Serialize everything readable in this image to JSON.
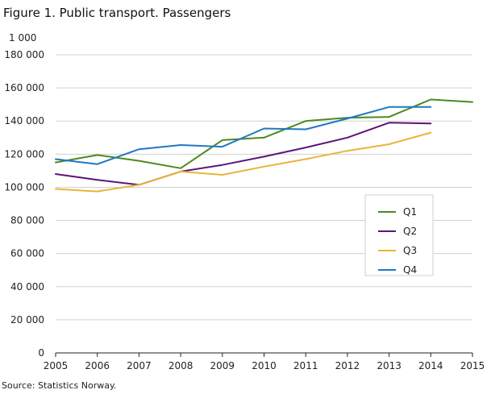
{
  "figure": {
    "title": "Figure 1. Public transport. Passengers",
    "unit_label": "1 000",
    "source": "Source: Statistics Norway."
  },
  "chart_data": {
    "type": "line",
    "title": "Figure 1. Public transport. Passengers",
    "xlabel": "",
    "ylabel": "1 000",
    "x": [
      2005,
      2006,
      2007,
      2008,
      2009,
      2010,
      2011,
      2012,
      2013,
      2014,
      2015
    ],
    "xlim": [
      2005,
      2015
    ],
    "ylim": [
      0,
      180000
    ],
    "yticks": [
      0,
      20000,
      40000,
      60000,
      80000,
      100000,
      120000,
      140000,
      160000,
      180000
    ],
    "ytick_labels": [
      "0",
      "20 000",
      "40 000",
      "60 000",
      "80 000",
      "100 000",
      "120 000",
      "140 000",
      "160 000",
      "180 000"
    ],
    "xtick_labels": [
      "2005",
      "2006",
      "2007",
      "2008",
      "2009",
      "2010",
      "2011",
      "2012",
      "2013",
      "2014",
      "2015"
    ],
    "grid": "horizontal",
    "legend_position": "right",
    "series": [
      {
        "name": "Q1",
        "color": "#4c8a1e",
        "points": [
          [
            2005,
            115000
          ],
          [
            2006,
            119500
          ],
          [
            2007,
            116000
          ],
          [
            2008,
            111500
          ],
          [
            2009,
            128500
          ],
          [
            2010,
            130000
          ],
          [
            2011,
            140000
          ],
          [
            2012,
            142000
          ],
          [
            2013,
            142500
          ],
          [
            2014,
            153000
          ],
          [
            2015,
            151500
          ]
        ]
      },
      {
        "name": "Q2",
        "color": "#5b1675",
        "points": [
          [
            2005,
            108000
          ],
          [
            2006,
            104500
          ],
          [
            2007,
            101500
          ],
          [
            2008,
            109500
          ],
          [
            2009,
            113500
          ],
          [
            2010,
            118500
          ],
          [
            2011,
            124000
          ],
          [
            2012,
            130000
          ],
          [
            2013,
            139000
          ],
          [
            2014,
            138500
          ]
        ]
      },
      {
        "name": "Q3",
        "color": "#e8b43a",
        "points": [
          [
            2005,
            99000
          ],
          [
            2006,
            97500
          ],
          [
            2007,
            101500
          ],
          [
            2008,
            109500
          ],
          [
            2009,
            107500
          ],
          [
            2010,
            112500
          ],
          [
            2011,
            117000
          ],
          [
            2012,
            122000
          ],
          [
            2013,
            126000
          ],
          [
            2014,
            133000
          ]
        ]
      },
      {
        "name": "Q4",
        "color": "#1f78c1",
        "points": [
          [
            2005,
            117000
          ],
          [
            2006,
            114000
          ],
          [
            2007,
            123000
          ],
          [
            2008,
            125500
          ],
          [
            2009,
            124500
          ],
          [
            2010,
            135500
          ],
          [
            2011,
            135000
          ],
          [
            2012,
            141500
          ],
          [
            2013,
            148500
          ],
          [
            2014,
            148500
          ]
        ]
      }
    ]
  }
}
